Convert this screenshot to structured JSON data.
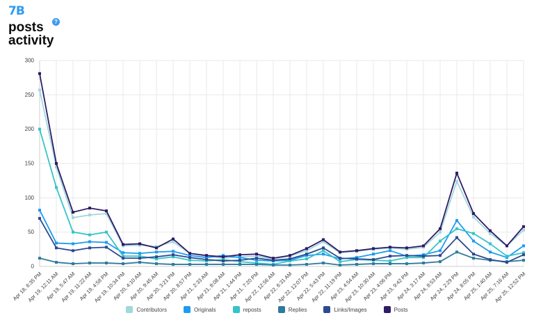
{
  "header": {
    "logo_text": "7B",
    "title_line1": "posts",
    "title_line2": "activity",
    "help_icon": "?"
  },
  "colors": {
    "logo_blue": "#2D9BF0",
    "help_icon_bg": "#3D9BEA",
    "grid": "#e9e9e9",
    "axis": "#cfcfcf",
    "tick_text": "#3c3c3c"
  },
  "chart_data": {
    "type": "line",
    "title": "posts activity",
    "xlabel": "",
    "ylabel": "",
    "ylim": [
      0,
      300
    ],
    "yticks": [
      0,
      50,
      100,
      150,
      200,
      250,
      300
    ],
    "grid": true,
    "legend_position": "bottom",
    "marker": "square",
    "x_labels": [
      "Apr 18, 6:35 PM",
      "Apr 19, 12:11 AM",
      "Apr 19, 5:47 AM",
      "Apr 19, 11:22 AM",
      "Apr 19, 4:58 PM",
      "Apr 19, 10:34 PM",
      "Apr 20, 4:10 AM",
      "Apr 20, 9:45 AM",
      "Apr 20, 3:21 PM",
      "Apr 20, 8:57 PM",
      "Apr 21, 2:33 AM",
      "Apr 21, 8:08 AM",
      "Apr 21, 1:44 PM",
      "Apr 21, 7:20 PM",
      "Apr 22, 12:56 AM",
      "Apr 22, 6:31 AM",
      "Apr 22, 12:07 PM",
      "Apr 22, 5:43 PM",
      "Apr 22, 11:19 PM",
      "Apr 23, 4:54 AM",
      "Apr 23, 10:30 AM",
      "Apr 23, 4:06 PM",
      "Apr 23, 9:42 PM",
      "Apr 24, 3:17 AM",
      "Apr 24, 8:53 AM",
      "Apr 24, 2:29 PM",
      "Apr 24, 8:05 PM",
      "Apr 25, 1:40 AM",
      "Apr 25, 7:16 AM",
      "Apr 25, 12:52 PM"
    ],
    "series": [
      {
        "name": "Contributors",
        "color": "#A0D8DC",
        "values": [
          257,
          145,
          71,
          75,
          77,
          30,
          31,
          29,
          36,
          19,
          15,
          12,
          14,
          15,
          11,
          15,
          23,
          36,
          20,
          22,
          25,
          27,
          25,
          28,
          50,
          124,
          72,
          48,
          30,
          53
        ]
      },
      {
        "name": "Originals",
        "color": "#1E9BF0",
        "values": [
          82,
          34,
          33,
          36,
          35,
          20,
          19,
          21,
          22,
          16,
          13,
          16,
          13,
          9,
          8,
          9,
          16,
          18,
          11,
          13,
          18,
          23,
          15,
          17,
          23,
          67,
          37,
          21,
          13,
          30
        ]
      },
      {
        "name": "reposts",
        "color": "#35C4C8",
        "values": [
          200,
          115,
          50,
          46,
          50,
          15,
          15,
          11,
          14,
          9,
          8,
          10,
          7,
          5,
          3,
          8,
          11,
          23,
          7,
          10,
          9,
          8,
          13,
          13,
          37,
          55,
          48,
          33,
          15,
          20
        ]
      },
      {
        "name": "Replies",
        "color": "#2F7A9D",
        "values": [
          12,
          6,
          4,
          5,
          5,
          4,
          6,
          4,
          3,
          3,
          3,
          3,
          3,
          3,
          2,
          2,
          3,
          5,
          2,
          3,
          4,
          4,
          4,
          5,
          7,
          21,
          12,
          9,
          7,
          9
        ]
      },
      {
        "name": "Links/Images",
        "color": "#2C4A90",
        "values": [
          70,
          27,
          23,
          27,
          28,
          12,
          12,
          14,
          17,
          13,
          10,
          8,
          9,
          12,
          9,
          11,
          18,
          27,
          12,
          11,
          10,
          15,
          16,
          15,
          16,
          42,
          18,
          10,
          6,
          17
        ]
      },
      {
        "name": "Posts",
        "color": "#2F1B66",
        "values": [
          281,
          150,
          79,
          85,
          81,
          32,
          33,
          27,
          40,
          19,
          16,
          14,
          17,
          18,
          12,
          16,
          26,
          39,
          21,
          23,
          26,
          28,
          27,
          30,
          55,
          136,
          77,
          52,
          30,
          58
        ]
      }
    ]
  }
}
